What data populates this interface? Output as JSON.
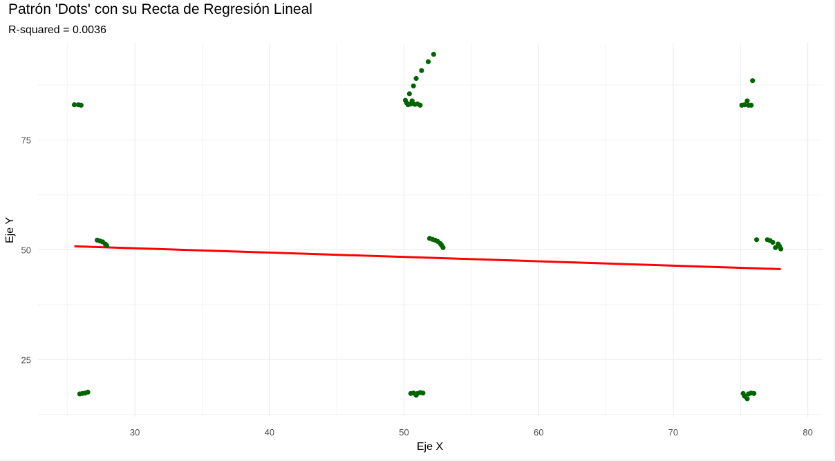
{
  "chart_data": {
    "type": "scatter",
    "title": "Patrón 'Dots' con su Recta de Regresión Lineal",
    "subtitle": "R-squared = 0.0036",
    "xlabel": "Eje X",
    "ylabel": "Eje Y",
    "xlim": [
      22.8,
      81.1
    ],
    "ylim": [
      12.0,
      97.1
    ],
    "x_ticks": [
      30,
      40,
      50,
      60,
      70,
      80
    ],
    "y_ticks": [
      25,
      50,
      75
    ],
    "grid": true,
    "colors": {
      "points": "#006400",
      "regression_line": "#ff0000",
      "grid": "#ebebeb"
    },
    "points": [
      [
        25.5,
        83.0
      ],
      [
        25.8,
        83.0
      ],
      [
        26.0,
        82.9
      ],
      [
        50.1,
        84.0
      ],
      [
        50.2,
        83.4
      ],
      [
        50.3,
        83.0
      ],
      [
        50.5,
        83.2
      ],
      [
        50.6,
        83.9
      ],
      [
        50.8,
        83.1
      ],
      [
        51.0,
        83.2
      ],
      [
        51.2,
        82.9
      ],
      [
        50.4,
        85.5
      ],
      [
        50.7,
        87.3
      ],
      [
        50.9,
        89.0
      ],
      [
        51.3,
        90.8
      ],
      [
        51.8,
        92.8
      ],
      [
        52.2,
        94.5
      ],
      [
        75.1,
        82.9
      ],
      [
        75.3,
        83.0
      ],
      [
        75.5,
        83.9
      ],
      [
        75.6,
        82.9
      ],
      [
        75.8,
        82.9
      ],
      [
        75.9,
        88.5
      ],
      [
        27.2,
        52.2
      ],
      [
        27.4,
        52.0
      ],
      [
        27.6,
        51.8
      ],
      [
        27.8,
        51.3
      ],
      [
        27.9,
        51.0
      ],
      [
        51.9,
        52.6
      ],
      [
        52.1,
        52.4
      ],
      [
        52.3,
        52.2
      ],
      [
        52.5,
        51.9
      ],
      [
        52.7,
        51.4
      ],
      [
        52.8,
        51.0
      ],
      [
        52.9,
        50.5
      ],
      [
        76.2,
        52.3
      ],
      [
        77.0,
        52.3
      ],
      [
        77.2,
        52.1
      ],
      [
        77.4,
        51.7
      ],
      [
        77.6,
        50.5
      ],
      [
        77.8,
        51.3
      ],
      [
        77.9,
        50.8
      ],
      [
        78.0,
        50.2
      ],
      [
        25.9,
        17.2
      ],
      [
        26.1,
        17.3
      ],
      [
        26.3,
        17.4
      ],
      [
        26.5,
        17.6
      ],
      [
        50.5,
        17.3
      ],
      [
        50.7,
        17.4
      ],
      [
        50.9,
        16.9
      ],
      [
        51.0,
        17.3
      ],
      [
        51.2,
        17.5
      ],
      [
        51.4,
        17.4
      ],
      [
        75.2,
        17.3
      ],
      [
        75.3,
        16.7
      ],
      [
        75.5,
        16.1
      ],
      [
        75.6,
        17.2
      ],
      [
        75.8,
        17.4
      ],
      [
        76.0,
        17.3
      ]
    ],
    "regression_line": {
      "x": [
        25.5,
        78.0
      ],
      "y": [
        50.8,
        45.6
      ]
    }
  }
}
